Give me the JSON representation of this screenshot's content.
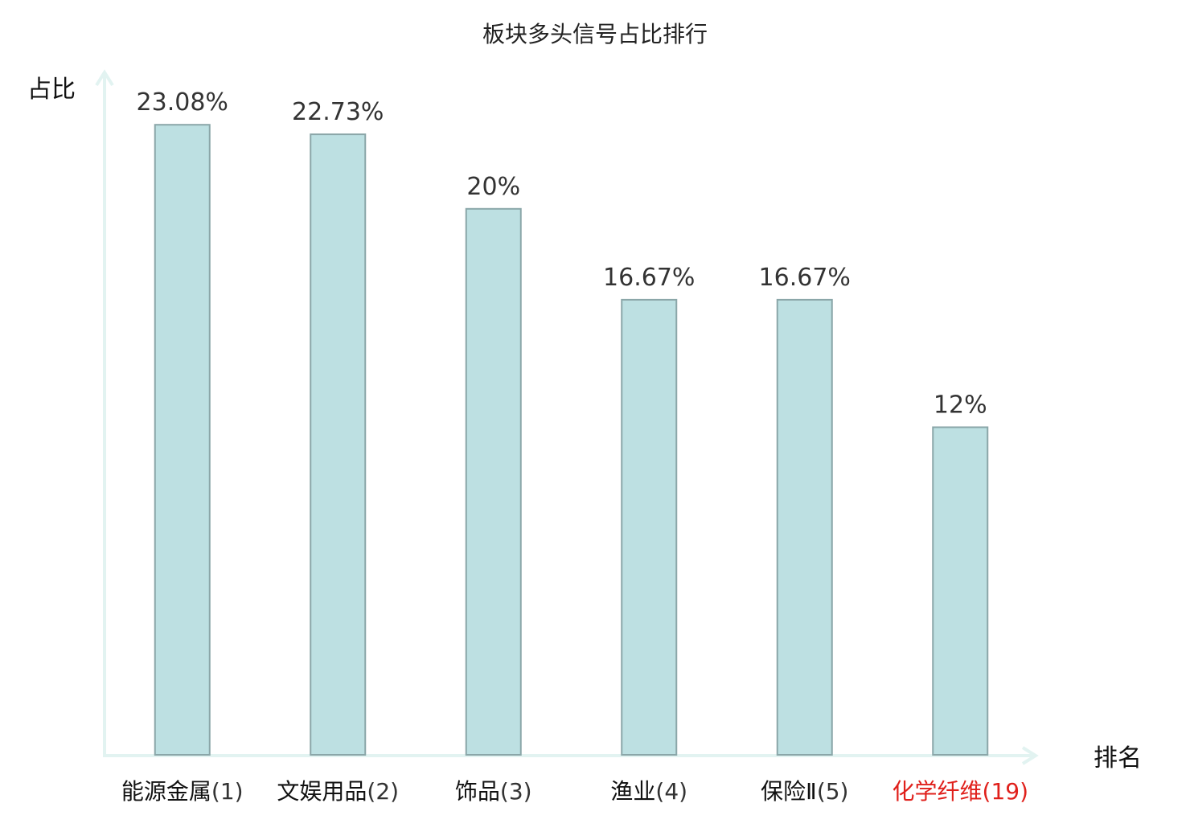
{
  "chart_data": {
    "type": "bar",
    "title": "板块多头信号占比排行",
    "ylabel": "占比",
    "xlabel": "排名",
    "categories": [
      "能源金属",
      "文娱用品",
      "饰品",
      "渔业",
      "保险Ⅱ",
      "化学纤维"
    ],
    "ranks": [
      "(1)",
      "(2)",
      "(3)",
      "(4)",
      "(5)",
      "(19)"
    ],
    "values": [
      23.08,
      22.73,
      20,
      16.67,
      16.67,
      12
    ],
    "value_labels": [
      "23.08%",
      "22.73%",
      "20%",
      "16.67%",
      "16.67%",
      "12%"
    ],
    "highlight_index": 5,
    "ylim": [
      0,
      25
    ],
    "grid": false,
    "colors": {
      "bar_fill": "#bde0e2",
      "bar_stroke": "#8aa6a8",
      "axis": "#e2f3f1",
      "highlight_text": "#e0201b"
    }
  }
}
